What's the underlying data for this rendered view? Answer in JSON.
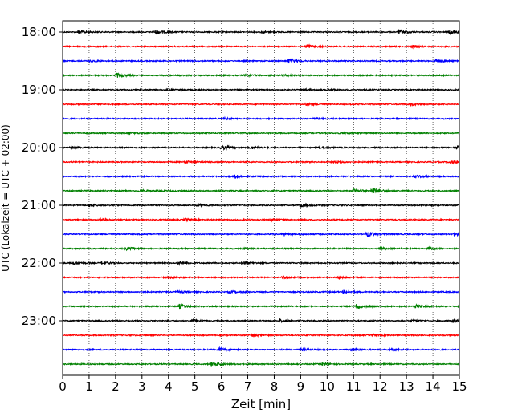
{
  "chart_data": {
    "type": "line",
    "xlabel": "Zeit  [min]",
    "ylabel": "UTC (Lokalzeit = UTC + 02:00)",
    "xlim": [
      0,
      15
    ],
    "x_ticks": [
      "0",
      "1",
      "2",
      "3",
      "4",
      "5",
      "6",
      "7",
      "8",
      "9",
      "10",
      "11",
      "12",
      "13",
      "14",
      "15"
    ],
    "y_tick_labels": [
      "18:00",
      "19:00",
      "20:00",
      "21:00",
      "22:00",
      "23:00"
    ],
    "trace_duration_min": 15,
    "grid": {
      "vertical": true,
      "style": "dotted"
    },
    "colors": [
      "#000000",
      "#ff0000",
      "#0000ff",
      "#008000"
    ],
    "series": [
      {
        "start": "18:00",
        "color": "#000000",
        "events": [
          [
            0.6,
            0.5
          ],
          [
            3.5,
            0.9
          ],
          [
            7.5,
            0.5
          ],
          [
            12.7,
            1.0
          ],
          [
            14.6,
            1.0
          ]
        ]
      },
      {
        "start": "18:15",
        "color": "#ff0000",
        "events": [
          [
            9.2,
            0.9
          ],
          [
            13.2,
            0.5
          ]
        ]
      },
      {
        "start": "18:30",
        "color": "#0000ff",
        "events": [
          [
            1.0,
            0.4
          ],
          [
            8.5,
            1.1
          ],
          [
            14.1,
            0.7
          ]
        ]
      },
      {
        "start": "18:45",
        "color": "#008000",
        "events": [
          [
            2.0,
            1.0
          ],
          [
            6.9,
            0.5
          ],
          [
            8.3,
            0.4
          ]
        ]
      },
      {
        "start": "19:00",
        "color": "#000000",
        "events": [
          [
            3.9,
            0.4
          ],
          [
            9.1,
            0.4
          ],
          [
            10.1,
            0.3
          ]
        ]
      },
      {
        "start": "19:15",
        "color": "#ff0000",
        "events": [
          [
            9.2,
            0.6
          ],
          [
            13.1,
            0.5
          ]
        ]
      },
      {
        "start": "19:30",
        "color": "#0000ff",
        "events": [
          [
            6.1,
            0.3
          ],
          [
            9.5,
            0.3
          ]
        ]
      },
      {
        "start": "19:45",
        "color": "#008000",
        "events": [
          [
            2.5,
            0.3
          ],
          [
            10.5,
            0.3
          ]
        ]
      },
      {
        "start": "20:00",
        "color": "#000000",
        "events": [
          [
            0.3,
            0.7
          ],
          [
            6.0,
            0.9
          ],
          [
            7.1,
            0.6
          ],
          [
            9.7,
            0.6
          ],
          [
            14.9,
            0.9
          ]
        ]
      },
      {
        "start": "20:15",
        "color": "#ff0000",
        "events": [
          [
            4.6,
            0.5
          ],
          [
            10.3,
            0.4
          ],
          [
            14.6,
            0.5
          ]
        ]
      },
      {
        "start": "20:30",
        "color": "#0000ff",
        "events": [
          [
            6.5,
            0.6
          ],
          [
            13.3,
            0.5
          ]
        ]
      },
      {
        "start": "20:45",
        "color": "#008000",
        "events": [
          [
            2.9,
            0.4
          ],
          [
            11.0,
            0.8
          ],
          [
            11.7,
            1.5
          ]
        ]
      },
      {
        "start": "21:00",
        "color": "#000000",
        "events": [
          [
            1.0,
            0.5
          ],
          [
            5.1,
            0.5
          ],
          [
            9.0,
            0.7
          ]
        ]
      },
      {
        "start": "21:15",
        "color": "#ff0000",
        "events": [
          [
            1.4,
            0.4
          ],
          [
            4.6,
            0.5
          ],
          [
            7.9,
            0.4
          ]
        ]
      },
      {
        "start": "21:30",
        "color": "#0000ff",
        "events": [
          [
            8.3,
            0.6
          ],
          [
            11.5,
            1.1
          ],
          [
            14.8,
            0.7
          ]
        ]
      },
      {
        "start": "21:45",
        "color": "#008000",
        "events": [
          [
            2.4,
            0.6
          ],
          [
            6.8,
            0.4
          ],
          [
            12.0,
            0.4
          ],
          [
            13.8,
            0.4
          ]
        ]
      },
      {
        "start": "22:00",
        "color": "#000000",
        "events": [
          [
            0.4,
            0.7
          ],
          [
            1.5,
            0.5
          ],
          [
            4.4,
            0.6
          ],
          [
            6.8,
            0.6
          ]
        ]
      },
      {
        "start": "22:15",
        "color": "#ff0000",
        "events": [
          [
            4.0,
            0.3
          ],
          [
            8.3,
            0.7
          ],
          [
            10.4,
            0.4
          ]
        ]
      },
      {
        "start": "22:30",
        "color": "#0000ff",
        "events": [
          [
            4.3,
            0.4
          ],
          [
            6.3,
            0.5
          ],
          [
            10.6,
            0.5
          ]
        ]
      },
      {
        "start": "22:45",
        "color": "#008000",
        "events": [
          [
            4.4,
            0.9
          ],
          [
            11.1,
            0.9
          ],
          [
            13.3,
            0.7
          ],
          [
            15.0,
            0.5
          ]
        ]
      },
      {
        "start": "23:00",
        "color": "#000000",
        "events": [
          [
            4.9,
            0.4
          ],
          [
            8.2,
            0.5
          ],
          [
            13.2,
            0.4
          ],
          [
            14.7,
            0.7
          ]
        ]
      },
      {
        "start": "23:15",
        "color": "#ff0000",
        "events": [
          [
            7.1,
            0.6
          ],
          [
            11.7,
            0.4
          ]
        ]
      },
      {
        "start": "23:30",
        "color": "#0000ff",
        "events": [
          [
            5.9,
            0.8
          ],
          [
            9.0,
            0.4
          ],
          [
            10.9,
            0.5
          ],
          [
            12.4,
            0.4
          ]
        ]
      },
      {
        "start": "23:45",
        "color": "#008000",
        "events": [
          [
            5.6,
            1.1
          ],
          [
            9.8,
            0.5
          ]
        ]
      }
    ]
  }
}
